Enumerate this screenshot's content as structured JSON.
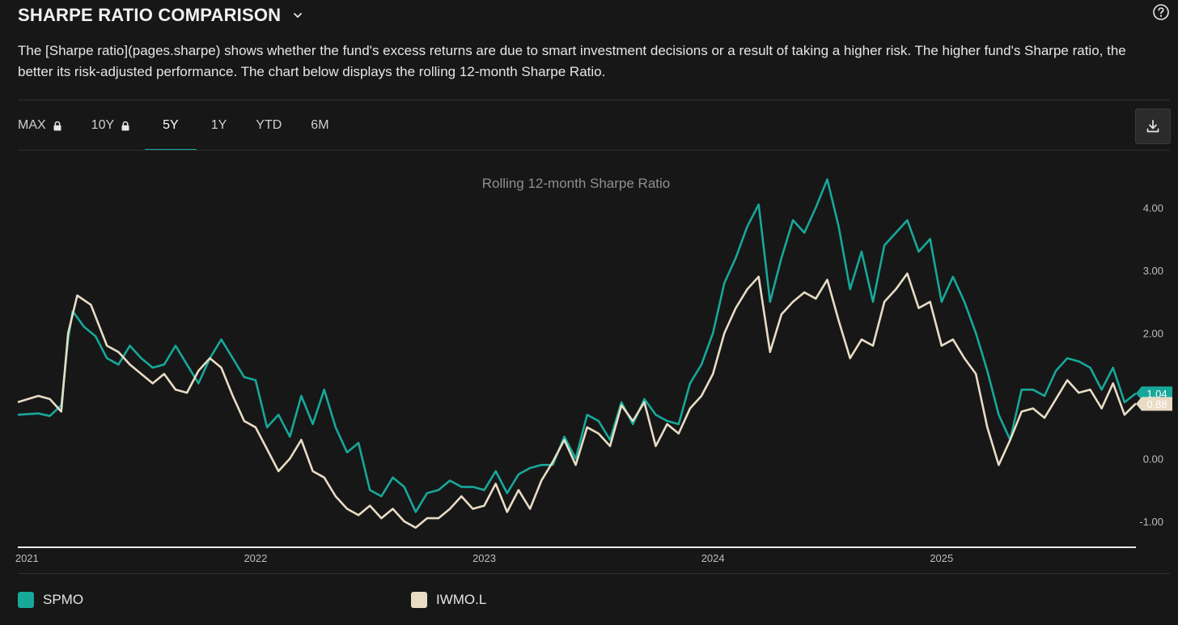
{
  "header": {
    "title": "SHARPE RATIO COMPARISON"
  },
  "description": "The [Sharpe ratio](pages.sharpe) shows whether the fund's excess returns are due to smart investment decisions or a result of taking a higher risk. The higher fund's Sharpe ratio, the better its risk-adjusted performance. The chart below displays the rolling 12-month Sharpe Ratio.",
  "tabs": [
    {
      "label": "MAX",
      "locked": true,
      "active": false
    },
    {
      "label": "10Y",
      "locked": true,
      "active": false
    },
    {
      "label": "5Y",
      "locked": false,
      "active": true
    },
    {
      "label": "1Y",
      "locked": false,
      "active": false
    },
    {
      "label": "YTD",
      "locked": false,
      "active": false
    },
    {
      "label": "6M",
      "locked": false,
      "active": false
    }
  ],
  "icons": {
    "chevron": "chevron-down-icon",
    "help": "help-circle-icon",
    "download": "download-icon",
    "lock": "lock-icon"
  },
  "colors": {
    "spmo": "#17a89a",
    "iwmo": "#e8dcc4",
    "accent": "#17a89a"
  },
  "chart_data": {
    "type": "line",
    "title": "Rolling 12-month Sharpe Ratio",
    "x_range": [
      2020.96,
      2025.85
    ],
    "ylim": [
      -1.4,
      4.6
    ],
    "y_ticks": [
      4,
      3,
      2,
      0,
      -1
    ],
    "y_tick_labels": [
      "4.00",
      "3.00",
      "2.00",
      "0.00",
      "-1.00"
    ],
    "x_ticks": [
      2021,
      2022,
      2023,
      2024,
      2025
    ],
    "x_tick_labels": [
      "2021",
      "2022",
      "2023",
      "2024",
      "2025"
    ],
    "legend_position": "bottom",
    "series": [
      {
        "name": "SPMO",
        "color": "#17a89a",
        "last_label": "1.04",
        "points": [
          [
            2020.96,
            0.7
          ],
          [
            2021.05,
            0.72
          ],
          [
            2021.1,
            0.68
          ],
          [
            2021.15,
            0.85
          ],
          [
            2021.18,
            1.9
          ],
          [
            2021.2,
            2.35
          ],
          [
            2021.25,
            2.1
          ],
          [
            2021.3,
            1.95
          ],
          [
            2021.35,
            1.6
          ],
          [
            2021.4,
            1.5
          ],
          [
            2021.45,
            1.8
          ],
          [
            2021.5,
            1.6
          ],
          [
            2021.55,
            1.45
          ],
          [
            2021.6,
            1.5
          ],
          [
            2021.65,
            1.8
          ],
          [
            2021.7,
            1.5
          ],
          [
            2021.75,
            1.2
          ],
          [
            2021.8,
            1.6
          ],
          [
            2021.85,
            1.9
          ],
          [
            2021.9,
            1.6
          ],
          [
            2021.95,
            1.3
          ],
          [
            2022.0,
            1.25
          ],
          [
            2022.05,
            0.5
          ],
          [
            2022.1,
            0.7
          ],
          [
            2022.15,
            0.35
          ],
          [
            2022.2,
            1.0
          ],
          [
            2022.25,
            0.55
          ],
          [
            2022.3,
            1.1
          ],
          [
            2022.35,
            0.5
          ],
          [
            2022.4,
            0.1
          ],
          [
            2022.45,
            0.25
          ],
          [
            2022.5,
            -0.5
          ],
          [
            2022.55,
            -0.6
          ],
          [
            2022.6,
            -0.3
          ],
          [
            2022.65,
            -0.45
          ],
          [
            2022.7,
            -0.85
          ],
          [
            2022.75,
            -0.55
          ],
          [
            2022.8,
            -0.5
          ],
          [
            2022.85,
            -0.35
          ],
          [
            2022.9,
            -0.45
          ],
          [
            2022.95,
            -0.45
          ],
          [
            2023.0,
            -0.5
          ],
          [
            2023.05,
            -0.2
          ],
          [
            2023.1,
            -0.55
          ],
          [
            2023.15,
            -0.25
          ],
          [
            2023.2,
            -0.15
          ],
          [
            2023.25,
            -0.1
          ],
          [
            2023.3,
            -0.1
          ],
          [
            2023.35,
            0.35
          ],
          [
            2023.4,
            0.0
          ],
          [
            2023.45,
            0.7
          ],
          [
            2023.5,
            0.6
          ],
          [
            2023.55,
            0.3
          ],
          [
            2023.6,
            0.9
          ],
          [
            2023.65,
            0.55
          ],
          [
            2023.7,
            0.95
          ],
          [
            2023.75,
            0.7
          ],
          [
            2023.8,
            0.6
          ],
          [
            2023.85,
            0.55
          ],
          [
            2023.9,
            1.2
          ],
          [
            2023.95,
            1.5
          ],
          [
            2024.0,
            2.0
          ],
          [
            2024.05,
            2.8
          ],
          [
            2024.1,
            3.2
          ],
          [
            2024.15,
            3.7
          ],
          [
            2024.2,
            4.05
          ],
          [
            2024.25,
            2.5
          ],
          [
            2024.3,
            3.2
          ],
          [
            2024.35,
            3.8
          ],
          [
            2024.4,
            3.6
          ],
          [
            2024.45,
            4.0
          ],
          [
            2024.5,
            4.45
          ],
          [
            2024.55,
            3.7
          ],
          [
            2024.6,
            2.7
          ],
          [
            2024.65,
            3.3
          ],
          [
            2024.7,
            2.5
          ],
          [
            2024.75,
            3.4
          ],
          [
            2024.8,
            3.6
          ],
          [
            2024.85,
            3.8
          ],
          [
            2024.9,
            3.3
          ],
          [
            2024.95,
            3.5
          ],
          [
            2025.0,
            2.5
          ],
          [
            2025.05,
            2.9
          ],
          [
            2025.1,
            2.5
          ],
          [
            2025.15,
            2.0
          ],
          [
            2025.2,
            1.4
          ],
          [
            2025.25,
            0.7
          ],
          [
            2025.3,
            0.3
          ],
          [
            2025.35,
            1.1
          ],
          [
            2025.4,
            1.1
          ],
          [
            2025.45,
            1.0
          ],
          [
            2025.5,
            1.4
          ],
          [
            2025.55,
            1.6
          ],
          [
            2025.6,
            1.55
          ],
          [
            2025.65,
            1.45
          ],
          [
            2025.7,
            1.1
          ],
          [
            2025.75,
            1.45
          ],
          [
            2025.8,
            0.9
          ],
          [
            2025.85,
            1.04
          ]
        ]
      },
      {
        "name": "IWMO.L",
        "color": "#e8dcc4",
        "last_label": "0.88",
        "points": [
          [
            2020.96,
            0.9
          ],
          [
            2021.05,
            1.0
          ],
          [
            2021.1,
            0.95
          ],
          [
            2021.15,
            0.75
          ],
          [
            2021.18,
            2.0
          ],
          [
            2021.22,
            2.6
          ],
          [
            2021.28,
            2.45
          ],
          [
            2021.35,
            1.8
          ],
          [
            2021.4,
            1.7
          ],
          [
            2021.45,
            1.5
          ],
          [
            2021.5,
            1.35
          ],
          [
            2021.55,
            1.2
          ],
          [
            2021.6,
            1.35
          ],
          [
            2021.65,
            1.1
          ],
          [
            2021.7,
            1.05
          ],
          [
            2021.75,
            1.4
          ],
          [
            2021.8,
            1.6
          ],
          [
            2021.85,
            1.45
          ],
          [
            2021.9,
            1.0
          ],
          [
            2021.95,
            0.6
          ],
          [
            2022.0,
            0.5
          ],
          [
            2022.05,
            0.15
          ],
          [
            2022.1,
            -0.2
          ],
          [
            2022.15,
            0.0
          ],
          [
            2022.2,
            0.3
          ],
          [
            2022.25,
            -0.2
          ],
          [
            2022.3,
            -0.3
          ],
          [
            2022.35,
            -0.6
          ],
          [
            2022.4,
            -0.8
          ],
          [
            2022.45,
            -0.9
          ],
          [
            2022.5,
            -0.75
          ],
          [
            2022.55,
            -0.95
          ],
          [
            2022.6,
            -0.8
          ],
          [
            2022.65,
            -1.0
          ],
          [
            2022.7,
            -1.1
          ],
          [
            2022.75,
            -0.95
          ],
          [
            2022.8,
            -0.95
          ],
          [
            2022.85,
            -0.8
          ],
          [
            2022.9,
            -0.6
          ],
          [
            2022.95,
            -0.8
          ],
          [
            2023.0,
            -0.75
          ],
          [
            2023.05,
            -0.4
          ],
          [
            2023.1,
            -0.85
          ],
          [
            2023.15,
            -0.5
          ],
          [
            2023.2,
            -0.8
          ],
          [
            2023.25,
            -0.35
          ],
          [
            2023.3,
            -0.05
          ],
          [
            2023.35,
            0.3
          ],
          [
            2023.4,
            -0.1
          ],
          [
            2023.45,
            0.5
          ],
          [
            2023.5,
            0.4
          ],
          [
            2023.55,
            0.2
          ],
          [
            2023.6,
            0.85
          ],
          [
            2023.65,
            0.6
          ],
          [
            2023.7,
            0.9
          ],
          [
            2023.75,
            0.2
          ],
          [
            2023.8,
            0.55
          ],
          [
            2023.85,
            0.4
          ],
          [
            2023.9,
            0.8
          ],
          [
            2023.95,
            1.0
          ],
          [
            2024.0,
            1.35
          ],
          [
            2024.05,
            2.0
          ],
          [
            2024.1,
            2.4
          ],
          [
            2024.15,
            2.7
          ],
          [
            2024.2,
            2.9
          ],
          [
            2024.25,
            1.7
          ],
          [
            2024.3,
            2.3
          ],
          [
            2024.35,
            2.5
          ],
          [
            2024.4,
            2.65
          ],
          [
            2024.45,
            2.55
          ],
          [
            2024.5,
            2.85
          ],
          [
            2024.55,
            2.2
          ],
          [
            2024.6,
            1.6
          ],
          [
            2024.65,
            1.9
          ],
          [
            2024.7,
            1.8
          ],
          [
            2024.75,
            2.5
          ],
          [
            2024.8,
            2.7
          ],
          [
            2024.85,
            2.95
          ],
          [
            2024.9,
            2.4
          ],
          [
            2024.95,
            2.5
          ],
          [
            2025.0,
            1.8
          ],
          [
            2025.05,
            1.9
          ],
          [
            2025.1,
            1.6
          ],
          [
            2025.15,
            1.35
          ],
          [
            2025.2,
            0.5
          ],
          [
            2025.25,
            -0.1
          ],
          [
            2025.3,
            0.3
          ],
          [
            2025.35,
            0.75
          ],
          [
            2025.4,
            0.8
          ],
          [
            2025.45,
            0.65
          ],
          [
            2025.5,
            0.95
          ],
          [
            2025.55,
            1.25
          ],
          [
            2025.6,
            1.05
          ],
          [
            2025.65,
            1.1
          ],
          [
            2025.7,
            0.8
          ],
          [
            2025.75,
            1.2
          ],
          [
            2025.8,
            0.7
          ],
          [
            2025.85,
            0.88
          ]
        ]
      }
    ]
  }
}
